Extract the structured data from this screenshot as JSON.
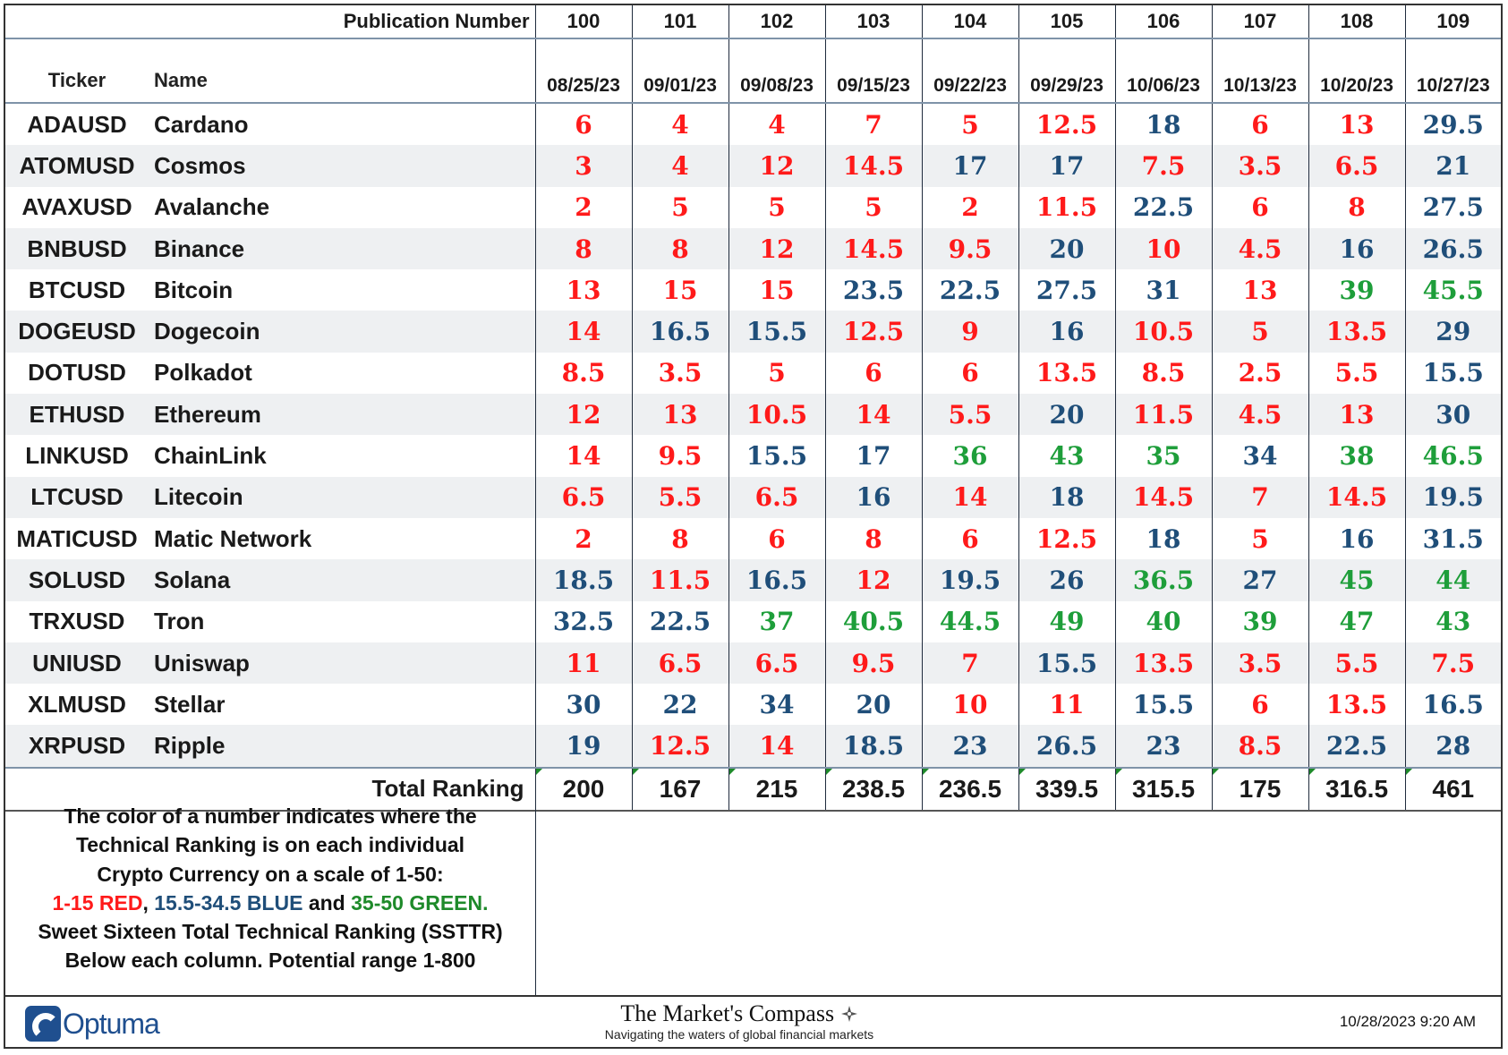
{
  "header": {
    "publication_label": "Publication Number",
    "ticker_label": "Ticker",
    "name_label": "Name",
    "publications": [
      "100",
      "101",
      "102",
      "103",
      "104",
      "105",
      "106",
      "107",
      "108",
      "109"
    ],
    "dates": [
      "08/25/23",
      "09/01/23",
      "09/08/23",
      "09/15/23",
      "09/22/23",
      "09/29/23",
      "10/06/23",
      "10/13/23",
      "10/20/23",
      "10/27/23"
    ]
  },
  "colors": {
    "red": "#ff1a1a",
    "blue": "#1f4e79",
    "green": "#1e9e3a"
  },
  "rows": [
    {
      "ticker": "ADAUSD",
      "name": "Cardano",
      "values": [
        "6",
        "4",
        "4",
        "7",
        "5",
        "12.5",
        "18",
        "6",
        "13",
        "29.5"
      ]
    },
    {
      "ticker": "ATOMUSD",
      "name": "Cosmos",
      "values": [
        "3",
        "4",
        "12",
        "14.5",
        "17",
        "17",
        "7.5",
        "3.5",
        "6.5",
        "21"
      ]
    },
    {
      "ticker": "AVAXUSD",
      "name": "Avalanche",
      "values": [
        "2",
        "5",
        "5",
        "5",
        "2",
        "11.5",
        "22.5",
        "6",
        "8",
        "27.5"
      ]
    },
    {
      "ticker": "BNBUSD",
      "name": "Binance",
      "values": [
        "8",
        "8",
        "12",
        "14.5",
        "9.5",
        "20",
        "10",
        "4.5",
        "16",
        "26.5"
      ]
    },
    {
      "ticker": "BTCUSD",
      "name": "Bitcoin",
      "values": [
        "13",
        "15",
        "15",
        "23.5",
        "22.5",
        "27.5",
        "31",
        "13",
        "39",
        "45.5"
      ]
    },
    {
      "ticker": "DOGEUSD",
      "name": "Dogecoin",
      "values": [
        "14",
        "16.5",
        "15.5",
        "12.5",
        "9",
        "16",
        "10.5",
        "5",
        "13.5",
        "29"
      ]
    },
    {
      "ticker": "DOTUSD",
      "name": "Polkadot",
      "values": [
        "8.5",
        "3.5",
        "5",
        "6",
        "6",
        "13.5",
        "8.5",
        "2.5",
        "5.5",
        "15.5"
      ]
    },
    {
      "ticker": "ETHUSD",
      "name": "Ethereum",
      "values": [
        "12",
        "13",
        "10.5",
        "14",
        "5.5",
        "20",
        "11.5",
        "4.5",
        "13",
        "30"
      ]
    },
    {
      "ticker": "LINKUSD",
      "name": "ChainLink",
      "values": [
        "14",
        "9.5",
        "15.5",
        "17",
        "36",
        "43",
        "35",
        "34",
        "38",
        "46.5"
      ]
    },
    {
      "ticker": "LTCUSD",
      "name": "Litecoin",
      "values": [
        "6.5",
        "5.5",
        "6.5",
        "16",
        "14",
        "18",
        "14.5",
        "7",
        "14.5",
        "19.5"
      ]
    },
    {
      "ticker": "MATICUSD",
      "name": "Matic Network",
      "values": [
        "2",
        "8",
        "6",
        "8",
        "6",
        "12.5",
        "18",
        "5",
        "16",
        "31.5"
      ]
    },
    {
      "ticker": "SOLUSD",
      "name": "Solana",
      "values": [
        "18.5",
        "11.5",
        "16.5",
        "12",
        "19.5",
        "26",
        "36.5",
        "27",
        "45",
        "44"
      ]
    },
    {
      "ticker": "TRXUSD",
      "name": "Tron",
      "values": [
        "32.5",
        "22.5",
        "37",
        "40.5",
        "44.5",
        "49",
        "40",
        "39",
        "47",
        "43"
      ]
    },
    {
      "ticker": "UNIUSD",
      "name": "Uniswap",
      "values": [
        "11",
        "6.5",
        "6.5",
        "9.5",
        "7",
        "15.5",
        "13.5",
        "3.5",
        "5.5",
        "7.5"
      ]
    },
    {
      "ticker": "XLMUSD",
      "name": "Stellar",
      "values": [
        "30",
        "22",
        "34",
        "20",
        "10",
        "11",
        "15.5",
        "6",
        "13.5",
        "16.5"
      ]
    },
    {
      "ticker": "XRPUSD",
      "name": "Ripple",
      "values": [
        "19",
        "12.5",
        "14",
        "18.5",
        "23",
        "26.5",
        "23",
        "8.5",
        "22.5",
        "28"
      ]
    }
  ],
  "totals": {
    "label": "Total Ranking",
    "values": [
      "200",
      "167",
      "215",
      "238.5",
      "236.5",
      "339.5",
      "315.5",
      "175",
      "316.5",
      "461"
    ]
  },
  "legend": {
    "line1": "The color of a number indicates where the",
    "line2": "Technical Ranking is on each individual",
    "line3": "Crypto Currency on a scale of 1-50:",
    "red_text": "1-15 RED",
    "sep1": ", ",
    "blue_text": "15.5-34.5 BLUE",
    "sep2": " and ",
    "green_text": "35-50 GREEN.",
    "line5": "Sweet Sixteen Total Technical Ranking (SSTTR)",
    "line6": "Below each column.   Potential range 1-800"
  },
  "footer": {
    "logo_text": "Optuma",
    "brand_title": "The Market's Compass",
    "brand_subtitle": "Navigating the waters of global financial markets",
    "timestamp": "10/28/2023 9:20 AM",
    "logo_icon": "optuma-logo-icon",
    "compass_icon": "compass-rose-icon"
  }
}
